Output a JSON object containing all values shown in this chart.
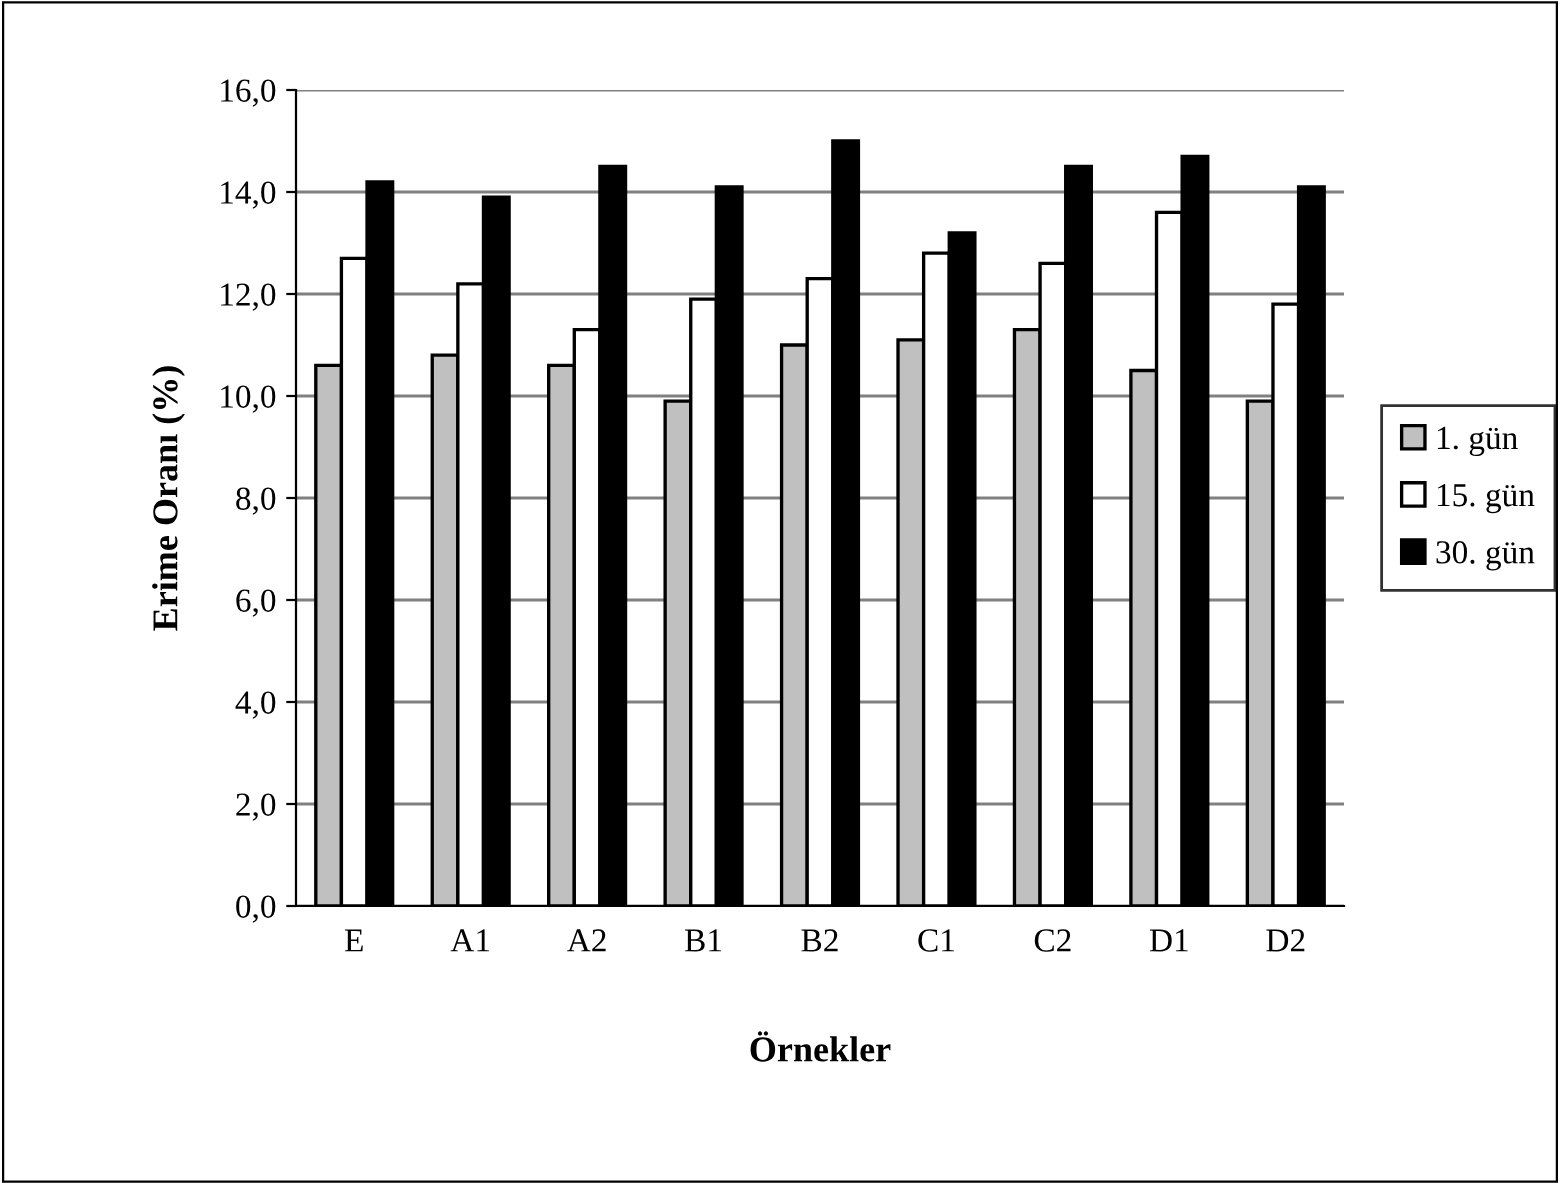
{
  "chart_data": {
    "type": "bar",
    "xlabel": "Örnekler",
    "ylabel": "Erime Oranı (%)",
    "categories": [
      "E",
      "A1",
      "A2",
      "B1",
      "B2",
      "C1",
      "C2",
      "D1",
      "D2"
    ],
    "series": [
      {
        "name": "1. gün",
        "color": "#c0c0c0",
        "values": [
          10.6,
          10.8,
          10.6,
          9.9,
          11.0,
          11.1,
          11.3,
          10.5,
          9.9
        ]
      },
      {
        "name": "15. gün",
        "color": "#ffffff",
        "values": [
          12.7,
          12.2,
          11.3,
          11.9,
          12.3,
          12.8,
          12.6,
          13.6,
          11.8
        ]
      },
      {
        "name": "30. gün",
        "color": "#000000",
        "values": [
          14.2,
          13.9,
          14.5,
          14.1,
          15.0,
          13.2,
          14.5,
          14.7,
          14.1
        ]
      }
    ],
    "ylim": [
      0,
      16
    ],
    "yticks": [
      {
        "value": 0,
        "label": "0,0"
      },
      {
        "value": 2,
        "label": "2,0"
      },
      {
        "value": 4,
        "label": "4,0"
      },
      {
        "value": 6,
        "label": "6,0"
      },
      {
        "value": 8,
        "label": "8,0"
      },
      {
        "value": 10,
        "label": "10,0"
      },
      {
        "value": 12,
        "label": "12,0"
      },
      {
        "value": 14,
        "label": "14,0"
      },
      {
        "value": 16,
        "label": "16,0"
      }
    ],
    "grid": "y",
    "legend": "right"
  }
}
